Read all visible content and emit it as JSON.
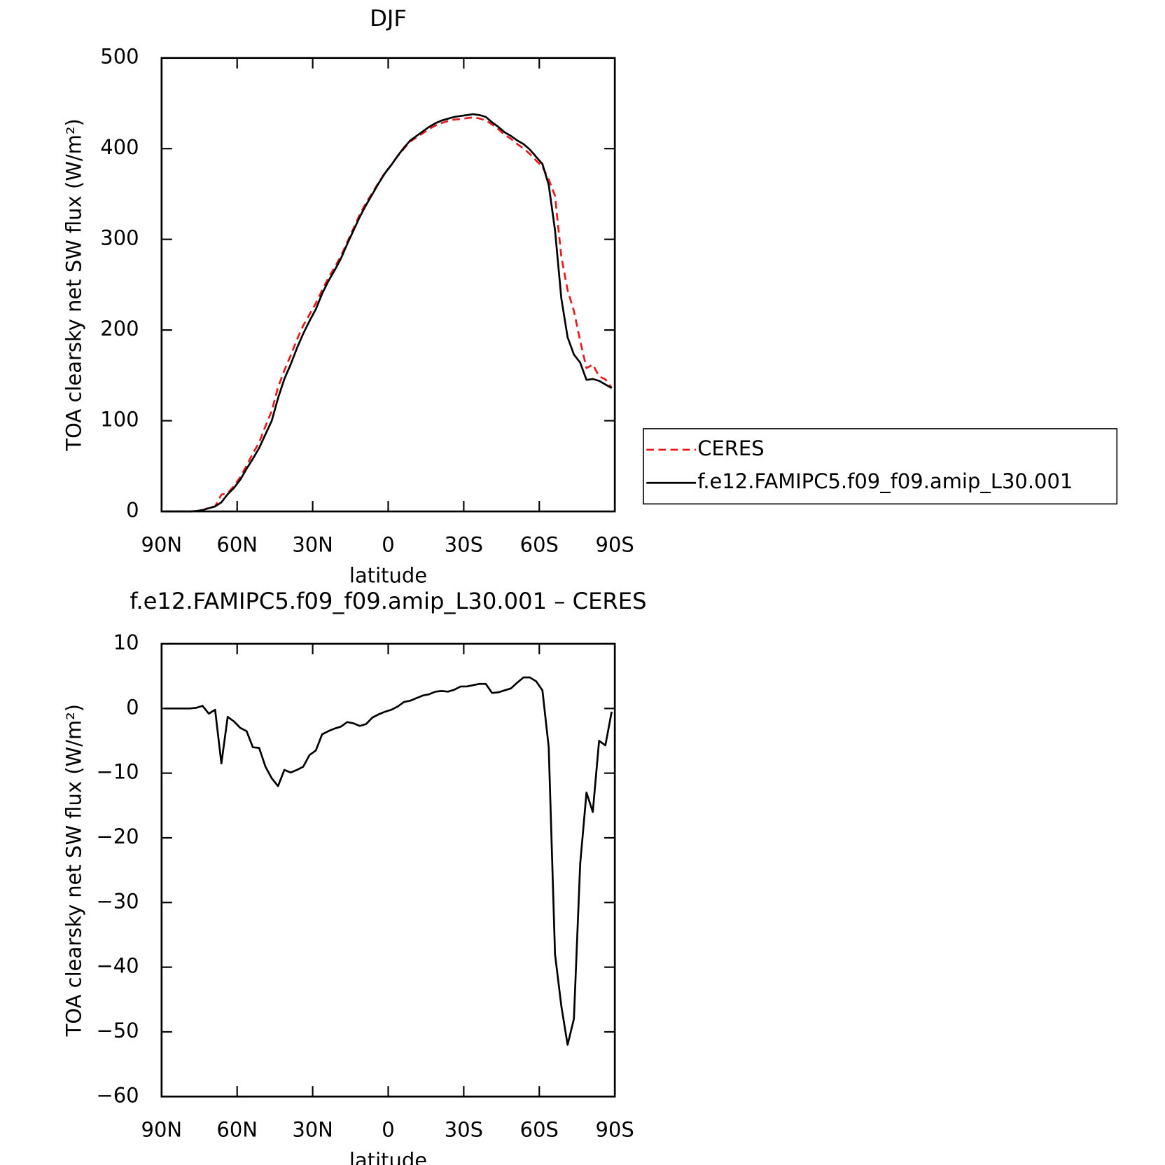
{
  "chart_data": [
    {
      "type": "line",
      "title": "DJF",
      "xlabel": "latitude",
      "ylabel": "TOA clearsky net SW flux (W/m²)",
      "x": [
        88.75,
        86.25,
        83.75,
        81.25,
        78.75,
        76.25,
        73.75,
        71.25,
        68.75,
        66.25,
        63.75,
        61.25,
        58.75,
        56.25,
        53.75,
        51.25,
        48.75,
        46.25,
        43.75,
        41.25,
        38.75,
        36.25,
        33.75,
        31.25,
        28.75,
        26.25,
        23.75,
        21.25,
        18.75,
        16.25,
        13.75,
        11.25,
        8.75,
        6.25,
        3.75,
        1.25,
        -1.25,
        -3.75,
        -6.25,
        -8.75,
        -11.25,
        -13.75,
        -16.25,
        -18.75,
        -21.25,
        -23.75,
        -26.25,
        -28.75,
        -31.25,
        -33.75,
        -36.25,
        -38.75,
        -41.25,
        -43.75,
        -46.25,
        -48.75,
        -51.25,
        -53.75,
        -56.25,
        -58.75,
        -61.25,
        -63.75,
        -66.25,
        -68.75,
        -71.25,
        -73.75,
        -76.25,
        -78.75,
        -81.25,
        -83.75,
        -86.25,
        -88.75
      ],
      "series": [
        {
          "name": "CERES",
          "color": "#e41a1c",
          "linestyle": "dashed",
          "values": [
            0,
            0,
            0,
            0,
            0,
            0.4,
            1.1,
            4.3,
            5.7,
            18.5,
            20.3,
            28,
            38,
            50.5,
            64,
            76.1,
            94,
            110.8,
            137,
            155.5,
            171.9,
            189.5,
            205,
            217.2,
            229.5,
            244,
            257.5,
            269.1,
            281.8,
            297.1,
            312.3,
            327.7,
            340.4,
            351.4,
            362.9,
            373.5,
            382.2,
            391.7,
            400,
            407.8,
            412.4,
            417,
            421.8,
            425.4,
            428.3,
            430.4,
            432.1,
            432.6,
            433.6,
            434.4,
            433.2,
            431.2,
            426.6,
            421.5,
            415.2,
            410.9,
            405,
            400.2,
            394.2,
            386.8,
            380.2,
            366,
            348,
            281,
            244,
            221,
            188,
            158,
            162,
            149,
            145.7,
            136.5
          ]
        },
        {
          "name": "f.e12.FAMIPC5.f09_f09.amip_L30.001",
          "color": "#000000",
          "linestyle": "solid",
          "values": [
            0,
            0,
            0,
            0,
            0,
            0.5,
            1.5,
            3.5,
            5.5,
            10,
            19,
            26,
            35,
            47,
            58,
            70,
            85,
            100,
            125,
            146,
            162,
            180,
            196,
            210,
            223,
            240,
            254,
            266,
            279,
            295,
            310,
            325,
            338,
            350,
            362,
            373,
            382,
            392,
            401,
            409,
            414,
            419,
            424,
            428,
            431,
            433,
            435,
            436,
            437,
            438,
            437,
            435,
            429,
            424,
            418,
            414,
            409,
            405,
            399,
            391,
            383,
            360,
            310,
            235,
            192,
            173,
            164,
            145,
            146,
            144,
            140,
            136
          ]
        }
      ],
      "xlim": [
        90,
        -90
      ],
      "xticks": [
        {
          "value": 90,
          "label": "90N"
        },
        {
          "value": 60,
          "label": "60N"
        },
        {
          "value": 30,
          "label": "30N"
        },
        0,
        {
          "value": -30,
          "label": "30S"
        },
        {
          "value": -60,
          "label": "60S"
        },
        {
          "value": -90,
          "label": "90S"
        }
      ],
      "ylim": [
        0,
        500
      ],
      "yticks": [
        0,
        100,
        200,
        300,
        400,
        500
      ],
      "legend": "right"
    },
    {
      "type": "line",
      "title": "f.e12.FAMIPC5.f09_f09.amip_L30.001 – CERES",
      "xlabel": "latitude",
      "ylabel": "TOA clearsky net SW flux (W/m²)",
      "x": [
        88.75,
        86.25,
        83.75,
        81.25,
        78.75,
        76.25,
        73.75,
        71.25,
        68.75,
        66.25,
        63.75,
        61.25,
        58.75,
        56.25,
        53.75,
        51.25,
        48.75,
        46.25,
        43.75,
        41.25,
        38.75,
        36.25,
        33.75,
        31.25,
        28.75,
        26.25,
        23.75,
        21.25,
        18.75,
        16.25,
        13.75,
        11.25,
        8.75,
        6.25,
        3.75,
        1.25,
        -1.25,
        -3.75,
        -6.25,
        -8.75,
        -11.25,
        -13.75,
        -16.25,
        -18.75,
        -21.25,
        -23.75,
        -26.25,
        -28.75,
        -31.25,
        -33.75,
        -36.25,
        -38.75,
        -41.25,
        -43.75,
        -46.25,
        -48.75,
        -51.25,
        -53.75,
        -56.25,
        -58.75,
        -61.25,
        -63.75,
        -66.25,
        -68.75,
        -71.25,
        -73.75,
        -76.25,
        -78.75,
        -81.25,
        -83.75,
        -86.25,
        -88.75
      ],
      "series": [
        {
          "color": "#000000",
          "linestyle": "solid",
          "values": [
            0,
            0,
            0,
            0,
            0,
            0.1,
            0.4,
            -0.8,
            -0.2,
            -8.5,
            -1.3,
            -2,
            -3,
            -3.5,
            -6,
            -6.1,
            -9,
            -10.8,
            -12,
            -9.5,
            -9.9,
            -9.5,
            -9,
            -7.2,
            -6.5,
            -4,
            -3.5,
            -3.1,
            -2.8,
            -2.1,
            -2.3,
            -2.7,
            -2.4,
            -1.4,
            -0.9,
            -0.5,
            -0.2,
            0.3,
            1,
            1.2,
            1.6,
            2,
            2.2,
            2.6,
            2.7,
            2.6,
            2.9,
            3.4,
            3.4,
            3.6,
            3.8,
            3.8,
            2.4,
            2.5,
            2.8,
            3.1,
            4,
            4.8,
            4.8,
            4.2,
            2.8,
            -6,
            -38,
            -46,
            -52,
            -48,
            -24,
            -13,
            -16,
            -5,
            -5.7,
            -0.5
          ]
        }
      ],
      "xlim": [
        90,
        -90
      ],
      "xticks": [
        {
          "value": 90,
          "label": "90N"
        },
        {
          "value": 60,
          "label": "60N"
        },
        {
          "value": 30,
          "label": "30N"
        },
        0,
        {
          "value": -30,
          "label": "30S"
        },
        {
          "value": -60,
          "label": "60S"
        },
        {
          "value": -90,
          "label": "90S"
        }
      ],
      "ylim": [
        -60,
        10
      ],
      "yticks": [
        {
          "value": -60,
          "label": "−60"
        },
        {
          "value": -50,
          "label": "−50"
        },
        {
          "value": -40,
          "label": "−40"
        },
        {
          "value": -30,
          "label": "−30"
        },
        {
          "value": -20,
          "label": "−20"
        },
        {
          "value": -10,
          "label": "−10"
        },
        0,
        10
      ]
    }
  ]
}
